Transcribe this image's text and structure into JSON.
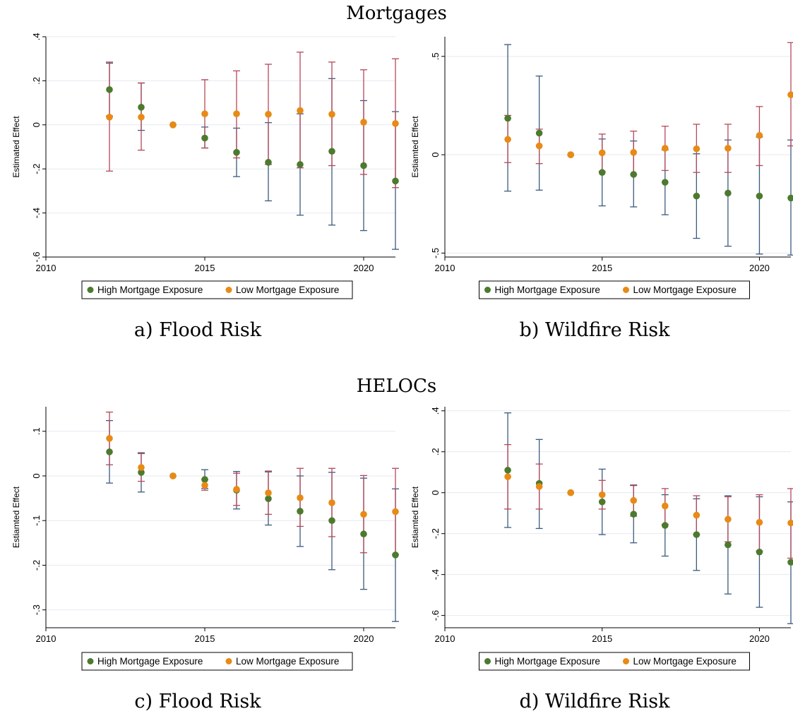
{
  "titles": {
    "mortgages": "Mortgages",
    "helocs": "HELOCs"
  },
  "legend": {
    "high": "High Mortgage Exposure",
    "low": "Low Mortgage Exposure"
  },
  "colors": {
    "high": "#4c7a2e",
    "low": "#e88a15",
    "high_ci": "#3b5b7e",
    "low_ci": "#b5485a",
    "grid": "#e6e9ef"
  },
  "captions": {
    "a": "a) Flood Risk",
    "b": "b) Wildfire Risk",
    "c": "c) Flood Risk",
    "d": "d) Wildfire Risk"
  },
  "chart_data": [
    {
      "id": "a",
      "type": "scatter",
      "ylabel": "Estimated Effect",
      "xlim": [
        2010,
        2021
      ],
      "xticks": [
        2010,
        2015,
        2020
      ],
      "ylim": [
        -0.6,
        0.4
      ],
      "yticks": [
        0.4,
        0.2,
        0,
        -0.2,
        -0.4,
        -0.6
      ],
      "yticklabels": [
        ".4",
        ".2",
        "0",
        "-.2",
        "-.4",
        "-.6"
      ],
      "x": [
        2012,
        2013,
        2014,
        2015,
        2016,
        2017,
        2018,
        2019,
        2020,
        2021
      ],
      "series": [
        {
          "name": "High Mortgage Exposure",
          "values": [
            0.16,
            0.08,
            0.0,
            -0.06,
            -0.125,
            -0.17,
            -0.18,
            -0.12,
            -0.185,
            -0.255
          ],
          "lower": [
            0.04,
            -0.025,
            0.0,
            -0.105,
            -0.235,
            -0.345,
            -0.41,
            -0.455,
            -0.48,
            -0.565
          ],
          "upper": [
            0.28,
            0.19,
            0.0,
            -0.01,
            -0.015,
            0.01,
            0.05,
            0.21,
            0.11,
            0.06
          ]
        },
        {
          "name": "Low Mortgage Exposure",
          "values": [
            0.035,
            0.035,
            0.0,
            0.05,
            0.05,
            0.048,
            0.065,
            0.048,
            0.012,
            0.006
          ],
          "lower": [
            -0.21,
            -0.115,
            0.0,
            -0.105,
            -0.15,
            -0.18,
            -0.195,
            -0.185,
            -0.225,
            -0.285
          ],
          "upper": [
            0.285,
            0.19,
            0.0,
            0.205,
            0.245,
            0.275,
            0.33,
            0.285,
            0.25,
            0.3
          ]
        }
      ]
    },
    {
      "id": "b",
      "type": "scatter",
      "ylabel": "Estiamted Effect",
      "xlim": [
        2010,
        2021
      ],
      "xticks": [
        2010,
        2015,
        2020
      ],
      "ylim": [
        -0.52,
        0.6
      ],
      "yticks": [
        0.5,
        0,
        -0.5
      ],
      "yticklabels": [
        ".5",
        "0",
        "-.5"
      ],
      "x": [
        2012,
        2013,
        2014,
        2015,
        2016,
        2017,
        2018,
        2019,
        2020,
        2021
      ],
      "series": [
        {
          "name": "High Mortgage Exposure",
          "values": [
            0.185,
            0.11,
            0.0,
            -0.09,
            -0.1,
            -0.14,
            -0.21,
            -0.195,
            -0.21,
            -0.22
          ],
          "lower": [
            -0.185,
            -0.18,
            0.0,
            -0.26,
            -0.265,
            -0.305,
            -0.425,
            -0.465,
            -0.505,
            -0.51
          ],
          "upper": [
            0.56,
            0.4,
            0.0,
            0.08,
            0.07,
            0.025,
            0.005,
            0.075,
            0.09,
            0.075
          ]
        },
        {
          "name": "Low Mortgage Exposure",
          "values": [
            0.078,
            0.045,
            0.0,
            0.01,
            0.012,
            0.033,
            0.03,
            0.033,
            0.098,
            0.305
          ],
          "lower": [
            -0.04,
            -0.045,
            0.0,
            -0.085,
            -0.1,
            -0.08,
            -0.09,
            -0.09,
            -0.055,
            0.045
          ],
          "upper": [
            0.2,
            0.13,
            0.0,
            0.105,
            0.12,
            0.145,
            0.155,
            0.155,
            0.245,
            0.57
          ]
        }
      ]
    },
    {
      "id": "c",
      "type": "scatter",
      "ylabel": "Estiamted Effect",
      "xlim": [
        2010,
        2021
      ],
      "xticks": [
        2010,
        2015,
        2020
      ],
      "ylim": [
        -0.34,
        0.155
      ],
      "yticks": [
        0.1,
        0,
        -0.1,
        -0.2,
        -0.3
      ],
      "yticklabels": [
        ".1",
        "0",
        "-.1",
        "-.2",
        "-.3"
      ],
      "x": [
        2012,
        2013,
        2014,
        2015,
        2016,
        2017,
        2018,
        2019,
        2020,
        2021
      ],
      "series": [
        {
          "name": "High Mortgage Exposure",
          "values": [
            0.054,
            0.008,
            0.0,
            -0.008,
            -0.032,
            -0.051,
            -0.079,
            -0.1,
            -0.13,
            -0.177
          ],
          "lower": [
            -0.016,
            -0.036,
            0.0,
            -0.028,
            -0.074,
            -0.11,
            -0.158,
            -0.21,
            -0.254,
            -0.326
          ],
          "upper": [
            0.124,
            0.052,
            0.0,
            0.014,
            0.01,
            0.009,
            0.0,
            0.008,
            -0.005,
            -0.029
          ]
        },
        {
          "name": "Low Mortgage Exposure",
          "values": [
            0.084,
            0.019,
            0.0,
            -0.021,
            -0.03,
            -0.038,
            -0.049,
            -0.06,
            -0.086,
            -0.08
          ],
          "lower": [
            0.025,
            -0.012,
            0.0,
            -0.032,
            -0.066,
            -0.086,
            -0.113,
            -0.136,
            -0.172,
            -0.176
          ],
          "upper": [
            0.143,
            0.05,
            0.0,
            -0.008,
            0.006,
            0.011,
            0.017,
            0.017,
            0.001,
            0.017
          ]
        }
      ]
    },
    {
      "id": "d",
      "type": "scatter",
      "ylabel": "Estiamted Effect",
      "xlim": [
        2010,
        2021
      ],
      "xticks": [
        2010,
        2015,
        2020
      ],
      "ylim": [
        -0.66,
        0.42
      ],
      "yticks": [
        0.4,
        0.2,
        0,
        -0.2,
        -0.4,
        -0.6
      ],
      "yticklabels": [
        ".4",
        ".2",
        "0",
        "-.2",
        "-.4",
        "-.6"
      ],
      "x": [
        2012,
        2013,
        2014,
        2015,
        2016,
        2017,
        2018,
        2019,
        2020,
        2021
      ],
      "series": [
        {
          "name": "High Mortgage Exposure",
          "values": [
            0.11,
            0.045,
            0.0,
            -0.045,
            -0.105,
            -0.16,
            -0.205,
            -0.255,
            -0.29,
            -0.34
          ],
          "lower": [
            -0.17,
            -0.175,
            0.0,
            -0.205,
            -0.245,
            -0.31,
            -0.38,
            -0.495,
            -0.56,
            -0.64
          ],
          "upper": [
            0.39,
            0.26,
            0.0,
            0.115,
            0.035,
            -0.01,
            -0.03,
            -0.015,
            -0.02,
            -0.045
          ]
        },
        {
          "name": "Low Mortgage Exposure",
          "values": [
            0.078,
            0.03,
            0.0,
            -0.01,
            -0.038,
            -0.065,
            -0.11,
            -0.13,
            -0.145,
            -0.148
          ],
          "lower": [
            -0.08,
            -0.08,
            0.0,
            -0.08,
            -0.115,
            -0.155,
            -0.205,
            -0.24,
            -0.285,
            -0.32
          ],
          "upper": [
            0.235,
            0.14,
            0.0,
            0.06,
            0.038,
            0.02,
            -0.015,
            -0.02,
            -0.01,
            0.02
          ]
        }
      ]
    }
  ]
}
